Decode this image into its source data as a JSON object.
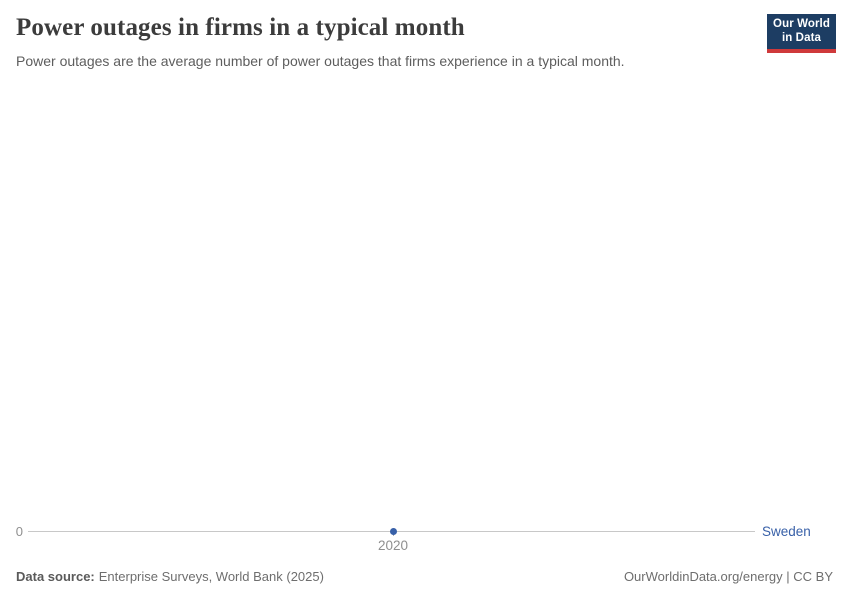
{
  "header": {
    "title": "Power outages in firms in a typical month",
    "subtitle": "Power outages are the average number of power outages that firms experience in a typical month.",
    "logo": {
      "line1": "Our World",
      "line2": "in Data"
    }
  },
  "chart": {
    "zero_label": "0",
    "x_tick_label": "2020",
    "entity_label": "Sweden"
  },
  "chart_data": {
    "type": "line",
    "title": "Power outages in firms in a typical month",
    "subtitle": "Power outages are the average number of power outages that firms experience in a typical month.",
    "series": [
      {
        "name": "Sweden",
        "x": [
          2020
        ],
        "values": [
          0
        ],
        "color": "#3860a8"
      }
    ],
    "xlabel": "",
    "ylabel": "",
    "x_ticks": [
      2020
    ],
    "y_ticks": [
      0
    ],
    "ylim": [
      0,
      null
    ],
    "grid": false,
    "legend_position": "right-end-of-line"
  },
  "footer": {
    "datasource_label": "Data source:",
    "datasource_value": "Enterprise Surveys, World Bank (2025)",
    "credit": "OurWorldinData.org/energy | CC BY"
  },
  "colors": {
    "accent_blue": "#3860a8",
    "logo_navy": "#1d3d63",
    "logo_red": "#cf393b",
    "axis_line": "#c8c8c8",
    "tick_label": "#8f8f8f",
    "title_text": "#3c3c3c"
  }
}
